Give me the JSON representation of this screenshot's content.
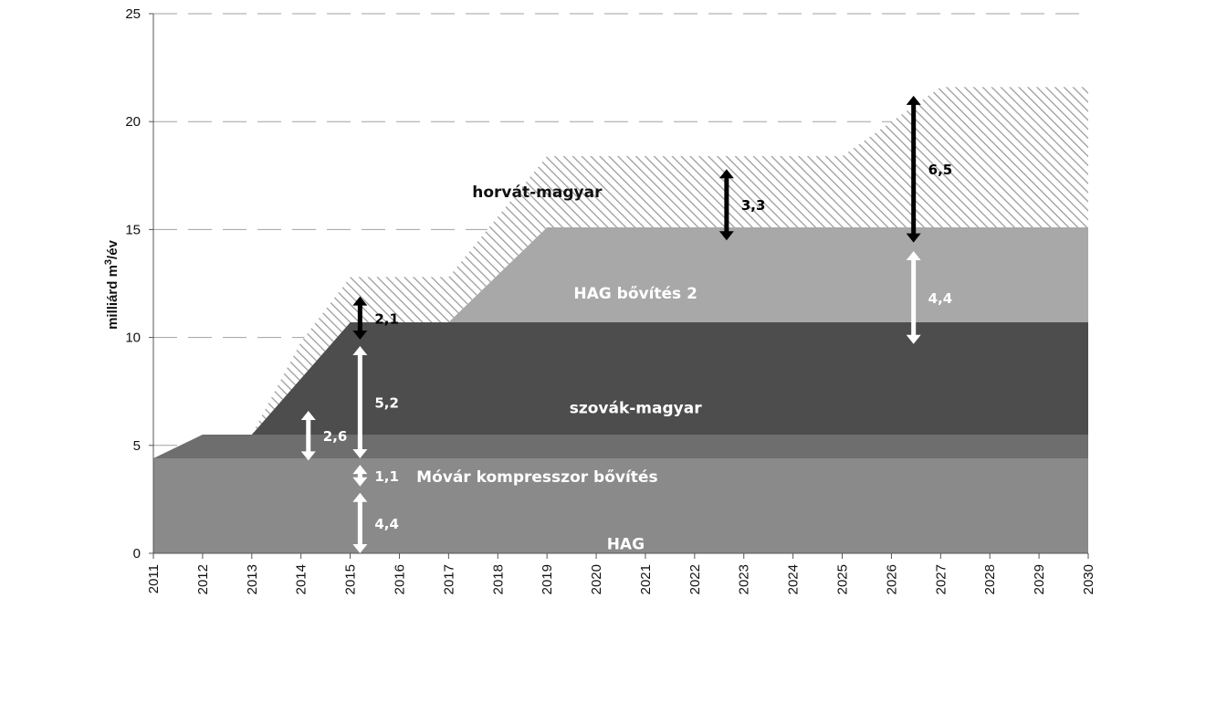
{
  "chart_data": {
    "type": "area",
    "stacked": true,
    "ylabel_prefix": "milliárd m",
    "ylabel_sup": "3",
    "ylabel_suffix": "/év",
    "ylim": [
      0,
      25
    ],
    "yticks": [
      "0",
      "5",
      "10",
      "15",
      "20",
      "25"
    ],
    "grid": "horizontal dashed",
    "categories": [
      "2011",
      "2012",
      "2013",
      "2014",
      "2015",
      "2016",
      "2017",
      "2018",
      "2019",
      "2020",
      "2021",
      "2022",
      "2023",
      "2024",
      "2025",
      "2026",
      "2027",
      "2028",
      "2029",
      "2030"
    ],
    "series": [
      {
        "name": "HAG",
        "color": "#8a8a8a",
        "label_color": "#ffffff",
        "values": [
          4.4,
          4.4,
          4.4,
          4.4,
          4.4,
          4.4,
          4.4,
          4.4,
          4.4,
          4.4,
          4.4,
          4.4,
          4.4,
          4.4,
          4.4,
          4.4,
          4.4,
          4.4,
          4.4,
          4.4
        ]
      },
      {
        "name": "Móvár kompresszor bővítés",
        "color": "#6e6e6e",
        "label_color": "#ffffff",
        "values": [
          0,
          1.1,
          1.1,
          1.1,
          1.1,
          1.1,
          1.1,
          1.1,
          1.1,
          1.1,
          1.1,
          1.1,
          1.1,
          1.1,
          1.1,
          1.1,
          1.1,
          1.1,
          1.1,
          1.1
        ]
      },
      {
        "name": "szovák-magyar",
        "color": "#4d4d4d",
        "label_color": "#ffffff",
        "values": [
          0,
          0,
          0,
          2.6,
          5.2,
          5.2,
          5.2,
          5.2,
          5.2,
          5.2,
          5.2,
          5.2,
          5.2,
          5.2,
          5.2,
          5.2,
          5.2,
          5.2,
          5.2,
          5.2
        ]
      },
      {
        "name": "HAG bővítés 2",
        "color": "#a8a8a8",
        "label_color": "#ffffff",
        "values": [
          0,
          0,
          0,
          0,
          0,
          0,
          0,
          2.2,
          4.4,
          4.4,
          4.4,
          4.4,
          4.4,
          4.4,
          4.4,
          4.4,
          4.4,
          4.4,
          4.4,
          4.4
        ]
      },
      {
        "name": "horvát-magyar",
        "color": "hatch",
        "label_color": "#111111",
        "values": [
          0,
          0,
          0,
          1.7,
          2.1,
          2.1,
          2.1,
          2.7,
          3.3,
          3.3,
          3.3,
          3.3,
          3.3,
          3.3,
          3.3,
          4.9,
          6.5,
          6.5,
          6.5,
          6.5
        ]
      }
    ],
    "arrows": [
      {
        "text": "4,4",
        "x": 2015.2,
        "from": 0,
        "to": 2.8,
        "color": "#ffffff",
        "label_color": "#ffffff"
      },
      {
        "text": "1,1",
        "x": 2015.2,
        "from": 3.1,
        "to": 4.1,
        "color": "#ffffff",
        "label_color": "#ffffff"
      },
      {
        "text": "5,2",
        "x": 2015.2,
        "from": 4.4,
        "to": 9.6,
        "color": "#ffffff",
        "label_color": "#ffffff"
      },
      {
        "text": "2,1",
        "x": 2015.2,
        "from": 9.9,
        "to": 11.9,
        "color": "#000000",
        "label_color": "#000000"
      },
      {
        "text": "2,6",
        "x": 2014.15,
        "from": 4.3,
        "to": 6.6,
        "color": "#ffffff",
        "label_color": "#ffffff"
      },
      {
        "text": "3,3",
        "x": 2022.65,
        "from": 14.5,
        "to": 17.8,
        "color": "#000000",
        "label_color": "#000000"
      },
      {
        "text": "6,5",
        "x": 2026.45,
        "from": 14.4,
        "to": 21.2,
        "color": "#000000",
        "label_color": "#000000"
      },
      {
        "text": "4,4",
        "x": 2026.45,
        "from": 9.7,
        "to": 14.0,
        "color": "#ffffff",
        "label_color": "#ffffff"
      }
    ]
  }
}
